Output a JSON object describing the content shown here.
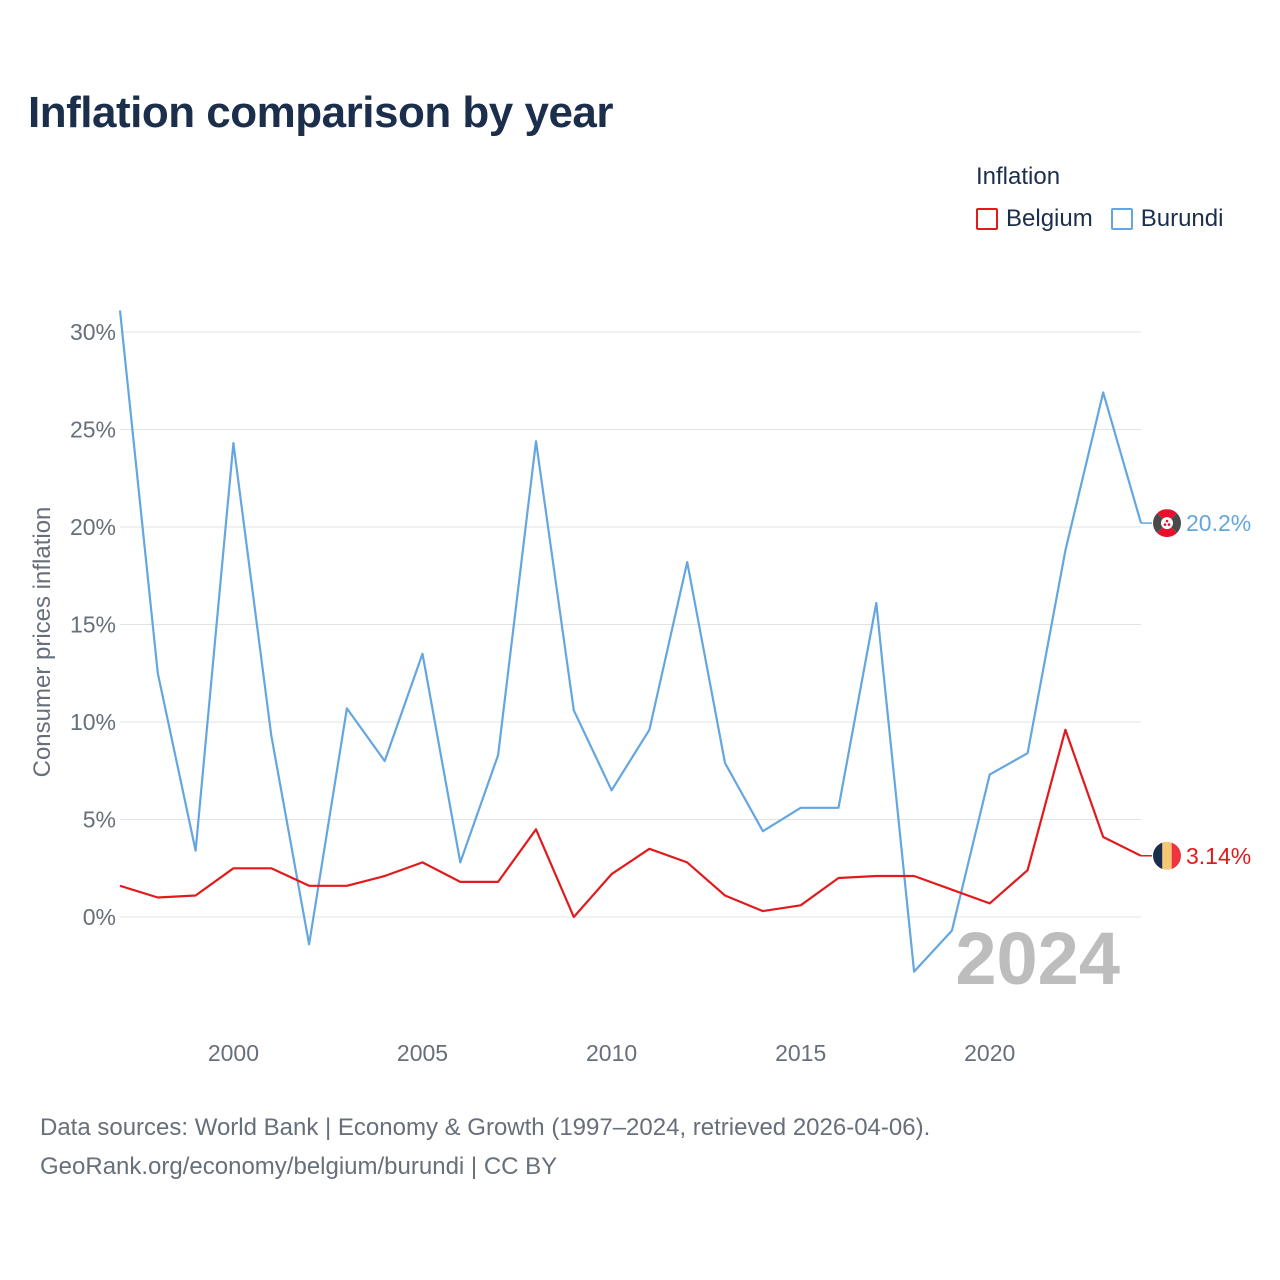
{
  "title": "Inflation comparison by year",
  "legend": {
    "title": "Inflation",
    "items": [
      {
        "name": "Belgium",
        "color": "#e31a1c"
      },
      {
        "name": "Burundi",
        "color": "#64a6e0"
      }
    ]
  },
  "chart_data": {
    "type": "line",
    "title": "Inflation comparison by year",
    "xlabel": "",
    "ylabel": "Consumer prices inflation",
    "x": [
      1997,
      1998,
      1999,
      2000,
      2001,
      2002,
      2003,
      2004,
      2005,
      2006,
      2007,
      2008,
      2009,
      2010,
      2011,
      2012,
      2013,
      2014,
      2015,
      2016,
      2017,
      2018,
      2019,
      2020,
      2021,
      2022,
      2023,
      2024
    ],
    "series": [
      {
        "name": "Burundi",
        "color": "#64a6e0",
        "end_label": "20.2%",
        "values": [
          31.1,
          12.5,
          3.4,
          24.3,
          9.3,
          -1.4,
          10.7,
          8.0,
          13.5,
          2.8,
          8.3,
          24.4,
          10.6,
          6.5,
          9.6,
          18.2,
          7.9,
          4.4,
          5.6,
          5.6,
          16.1,
          -2.8,
          -0.7,
          7.3,
          8.4,
          18.8,
          26.9,
          20.2
        ]
      },
      {
        "name": "Belgium",
        "color": "#e31a1c",
        "end_label": "3.14%",
        "values": [
          1.6,
          1.0,
          1.1,
          2.5,
          2.5,
          1.6,
          1.6,
          2.1,
          2.8,
          1.8,
          1.8,
          4.5,
          0.0,
          2.2,
          3.5,
          2.8,
          1.1,
          0.3,
          0.6,
          2.0,
          2.1,
          2.1,
          1.4,
          0.7,
          2.4,
          9.6,
          4.1,
          3.14
        ]
      }
    ],
    "ylim": [
      -5,
      32
    ],
    "xlim": [
      1997,
      2024
    ],
    "yticks": [
      0,
      5,
      10,
      15,
      20,
      25,
      30
    ],
    "ytick_labels": [
      "0%",
      "5%",
      "10%",
      "15%",
      "20%",
      "25%",
      "30%"
    ],
    "xticks": [
      2000,
      2005,
      2010,
      2015,
      2020
    ],
    "xtick_labels": [
      "2000",
      "2005",
      "2010",
      "2015",
      "2020"
    ],
    "grid": true,
    "year_watermark": "2024",
    "legend_position": "top-right"
  },
  "footer": {
    "line1": "Data sources: World Bank | Economy & Growth (1997–2024, retrieved 2026-04-06).",
    "line2": "GeoRank.org/economy/belgium/burundi | CC BY"
  }
}
